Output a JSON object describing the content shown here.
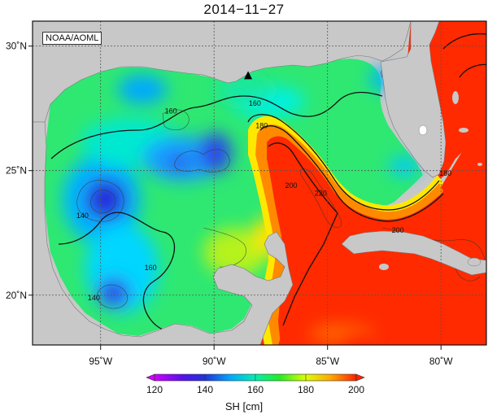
{
  "title": "2014−11−27",
  "credit": "NOAA/AOML",
  "map": {
    "lon_range": [
      -98,
      -78
    ],
    "lat_range": [
      18,
      31
    ],
    "lon_ticks": [
      {
        "v": -95,
        "label": "95˚W"
      },
      {
        "v": -90,
        "label": "90˚W"
      },
      {
        "v": -85,
        "label": "85˚W"
      },
      {
        "v": -80,
        "label": "80˚W"
      }
    ],
    "lat_ticks": [
      {
        "v": 30,
        "label": "30˚N"
      },
      {
        "v": 25,
        "label": "25˚N"
      },
      {
        "v": 20,
        "label": "20˚N"
      }
    ],
    "marker": {
      "lon": -88.5,
      "lat": 28.8,
      "symbol": "triangle"
    },
    "contour_labels": [
      {
        "text": "160",
        "lon": -91.9,
        "lat": 27.3
      },
      {
        "text": "160",
        "lon": -88.2,
        "lat": 27.6
      },
      {
        "text": "180",
        "lon": -87.9,
        "lat": 26.7
      },
      {
        "text": "200",
        "lon": -86.6,
        "lat": 24.3
      },
      {
        "text": "220",
        "lon": -85.3,
        "lat": 24.0
      },
      {
        "text": "200",
        "lon": -81.9,
        "lat": 22.5
      },
      {
        "text": "180",
        "lon": -79.8,
        "lat": 24.8
      },
      {
        "text": "140",
        "lon": -95.8,
        "lat": 23.1
      },
      {
        "text": "160",
        "lon": -92.8,
        "lat": 21.0
      },
      {
        "text": "140",
        "lon": -95.3,
        "lat": 19.8
      }
    ]
  },
  "colorbar": {
    "min": 120,
    "max": 200,
    "ticks": [
      "120",
      "140",
      "160",
      "180",
      "200"
    ],
    "label": "SH [cm]",
    "colors": [
      "#cc00ff",
      "#2222dd",
      "#00aaff",
      "#00ffcc",
      "#22ee22",
      "#ddff00",
      "#ffaa00",
      "#ff2200"
    ]
  }
}
